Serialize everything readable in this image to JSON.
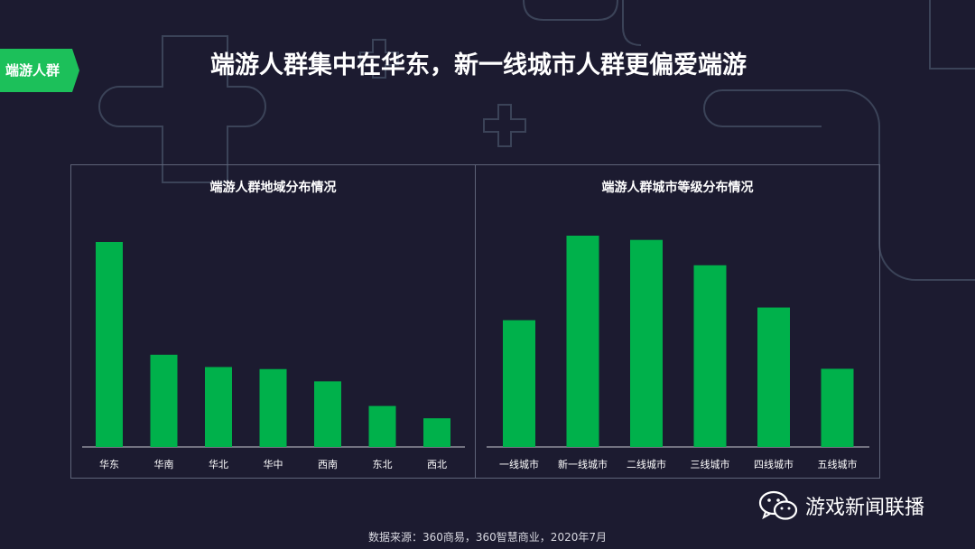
{
  "tag_label": "端游人群",
  "main_title": "端游人群集中在华东，新一线城市人群更偏爱端游",
  "source_note": "数据来源：360商易，360智慧商业，2020年7月",
  "watermark_text": "游戏新闻联播",
  "colors": {
    "background": "#1c1b30",
    "bar": "#00b14b",
    "tag": "#1cc05a",
    "frame": "#5e6378",
    "deco": "#3b4358"
  },
  "chart_data": [
    {
      "type": "bar",
      "title": "端游人群地域分布情况",
      "categories": [
        "华东",
        "华南",
        "华北",
        "华中",
        "西南",
        "东北",
        "西北"
      ],
      "values": [
        100,
        45,
        39,
        38,
        32,
        20,
        14
      ],
      "ylim": [
        0,
        100
      ],
      "grid": false,
      "legend": "none"
    },
    {
      "type": "bar",
      "title": "端游人群城市等级分布情况",
      "categories": [
        "一线城市",
        "新一线城市",
        "二线城市",
        "三线城市",
        "四线城市",
        "五线城市"
      ],
      "values": [
        60,
        100,
        98,
        86,
        66,
        37
      ],
      "ylim": [
        0,
        100
      ],
      "grid": false,
      "legend": "none"
    }
  ]
}
